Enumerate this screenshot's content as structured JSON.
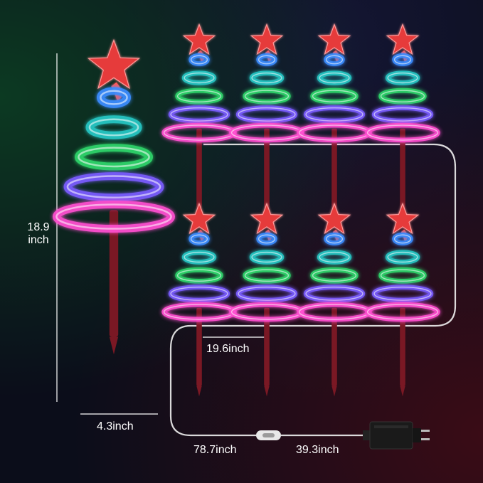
{
  "dimensions": {
    "height_value": "18.9",
    "height_unit": "inch",
    "base_width": "4.3inch",
    "spacing": "19.6inch",
    "lead_cable": "78.7inch",
    "plug_cable": "39.3inch"
  },
  "colors": {
    "background": "#0b0d1a",
    "star": "#e63a3a",
    "stake": "#7a1824",
    "cable": "#f2f2f2",
    "spiral": [
      "#3a8cff",
      "#27c6c4",
      "#2fd46a",
      "#7a5cff",
      "#ff4fd0"
    ]
  },
  "product": {
    "large_tree_count": 1,
    "small_tree_count": 8
  }
}
